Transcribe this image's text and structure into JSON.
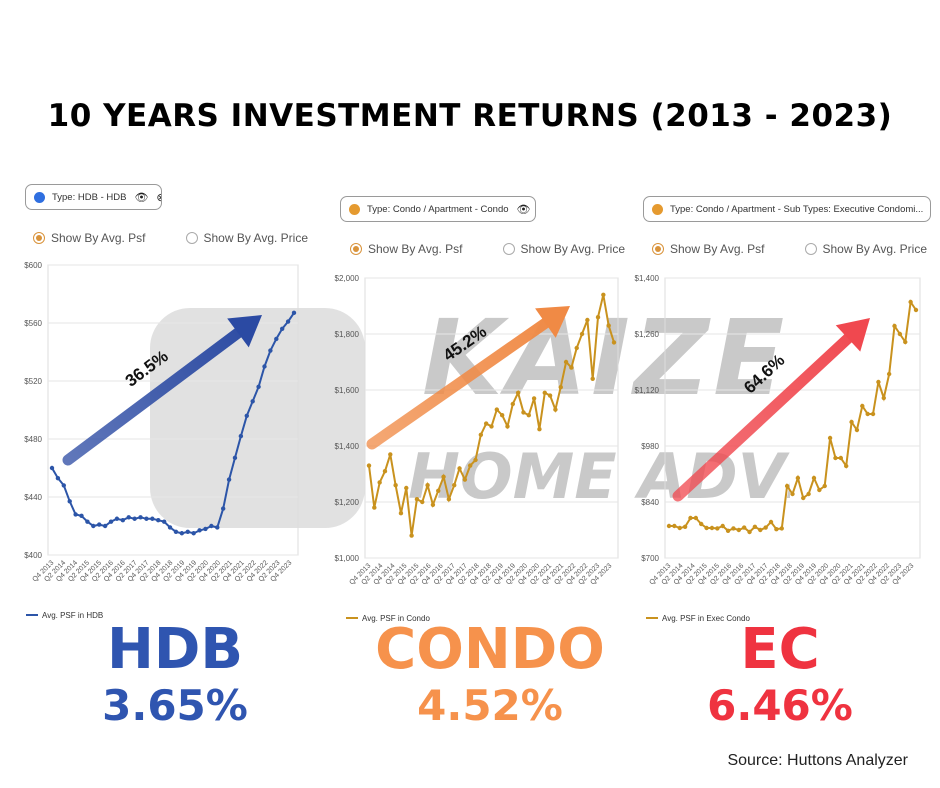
{
  "title": "10 YEARS INVESTMENT RETURNS (2013 - 2023)",
  "watermark": {
    "brand": "KAIZER",
    "sub": "HOME ADVISORY"
  },
  "source": "Source: Huttons Analyzer",
  "quarters": [
    "Q4 2013",
    "Q2 2014",
    "Q4 2014",
    "Q2 2015",
    "Q4 2015",
    "Q2 2016",
    "Q4 2016",
    "Q2 2017",
    "Q4 2017",
    "Q2 2018",
    "Q4 2018",
    "Q2 2019",
    "Q4 2019",
    "Q2 2020",
    "Q4 2020",
    "Q2 2021",
    "Q4 2021",
    "Q2 2022",
    "Q4 2022",
    "Q2 2023",
    "Q4 2023"
  ],
  "radio": {
    "psf": "Show By Avg. Psf",
    "price": "Show By Avg. Price"
  },
  "panels": [
    {
      "filter": "Type: HDB - HDB",
      "dot_color": "#2f6fe0",
      "line_color": "#2c55a8",
      "legend": "Avg. PSF in HDB",
      "arrow_label": "36.5%",
      "arrow_color": "#2b4aa3",
      "big_name": "HDB",
      "big_rate": "3.65%",
      "big_color": "#2f55b0",
      "chart_data": {
        "type": "line",
        "ylim": [
          400,
          600
        ],
        "yticks": [
          "$400",
          "$440",
          "$480",
          "$520",
          "$560",
          "$600"
        ],
        "ytick_values": [
          400,
          440,
          480,
          520,
          560,
          600
        ],
        "values": [
          460,
          453,
          448,
          437,
          428,
          427,
          423,
          420,
          421,
          420,
          423,
          425,
          424,
          426,
          425,
          426,
          425,
          425,
          424,
          423,
          419,
          416,
          415,
          416,
          415,
          417,
          418,
          420,
          419,
          432,
          452,
          467,
          482,
          496,
          506,
          516,
          530,
          541,
          549,
          556,
          561,
          567
        ]
      }
    },
    {
      "filter": "Type: Condo / Apartment - Condo",
      "dot_color": "#e59a2f",
      "line_color": "#c9921e",
      "legend": "Avg. PSF in Condo",
      "arrow_label": "45.2%",
      "arrow_color": "#f08a45",
      "big_name": "CONDO",
      "big_rate": "4.52%",
      "big_color": "#f6924c",
      "chart_data": {
        "type": "line",
        "ylim": [
          1000,
          2000
        ],
        "yticks": [
          "$1,000",
          "$1,200",
          "$1,400",
          "$1,600",
          "$1,800",
          "$2,000"
        ],
        "ytick_values": [
          1000,
          1200,
          1400,
          1600,
          1800,
          2000
        ],
        "values": [
          1330,
          1180,
          1270,
          1310,
          1370,
          1260,
          1160,
          1250,
          1080,
          1210,
          1200,
          1260,
          1190,
          1240,
          1290,
          1210,
          1260,
          1320,
          1280,
          1330,
          1350,
          1440,
          1480,
          1470,
          1530,
          1510,
          1470,
          1550,
          1590,
          1520,
          1510,
          1570,
          1460,
          1590,
          1580,
          1530,
          1610,
          1700,
          1680,
          1750,
          1800,
          1850,
          1640,
          1860,
          1940,
          1830,
          1770
        ]
      }
    },
    {
      "filter": "Type: Condo / Apartment - Sub Types: Executive Condomi...",
      "dot_color": "#e59a2f",
      "line_color": "#c9921e",
      "legend": "Avg. PSF in Exec Condo",
      "arrow_label": "64.6%",
      "arrow_color": "#f0484f",
      "big_name": "EC",
      "big_rate": "6.46%",
      "big_color": "#ef3340",
      "chart_data": {
        "type": "line",
        "ylim": [
          700,
          1400
        ],
        "yticks": [
          "$700",
          "$840",
          "$980",
          "$1,120",
          "$1,260",
          "$1,400"
        ],
        "ytick_values": [
          700,
          840,
          980,
          1120,
          1260,
          1400
        ],
        "values": [
          780,
          780,
          775,
          778,
          800,
          800,
          785,
          775,
          775,
          774,
          780,
          768,
          774,
          770,
          776,
          765,
          778,
          770,
          776,
          790,
          772,
          774,
          880,
          860,
          900,
          850,
          860,
          900,
          870,
          880,
          1000,
          950,
          950,
          930,
          1040,
          1020,
          1080,
          1060,
          1060,
          1140,
          1100,
          1160,
          1280,
          1260,
          1240,
          1340,
          1320
        ]
      }
    }
  ]
}
